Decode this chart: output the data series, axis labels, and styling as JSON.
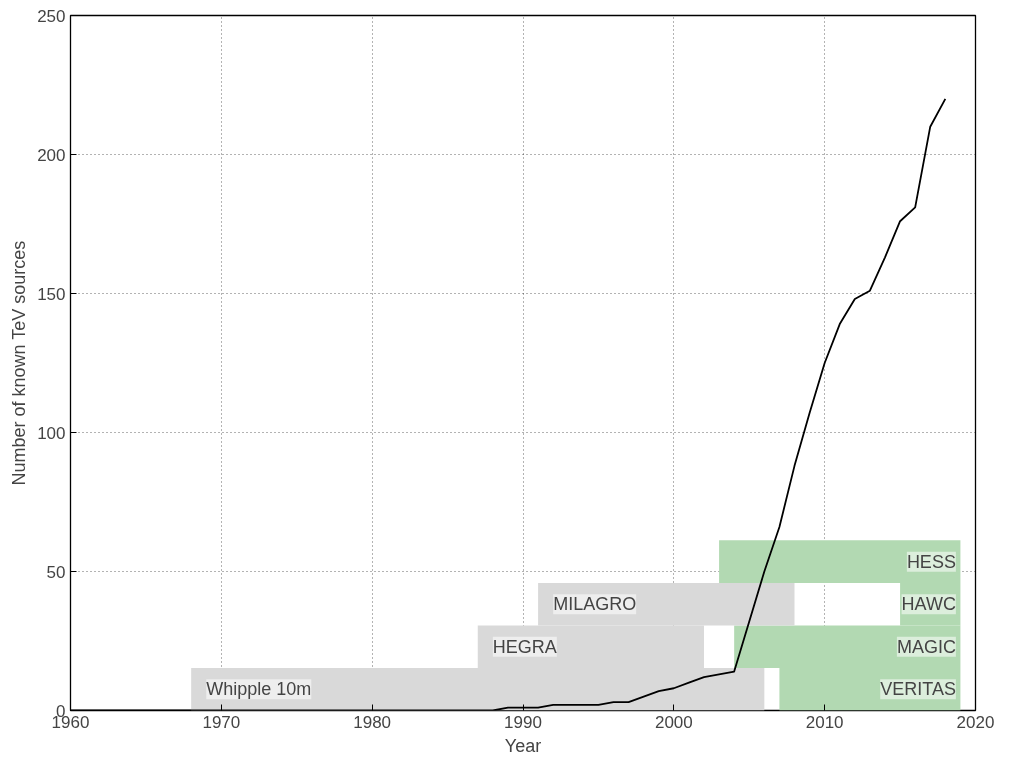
{
  "chart_data": {
    "type": "line",
    "xlabel": "Year",
    "ylabel": "Number of known TeV sources",
    "x": [
      1960,
      1988,
      1989,
      1991,
      1992,
      1995,
      1996,
      1997,
      1999,
      2000,
      2001,
      2002,
      2003,
      2004,
      2005,
      2006,
      2007,
      2008,
      2009,
      2010,
      2011,
      2012,
      2013,
      2014,
      2015,
      2016,
      2017,
      2018
    ],
    "series": [
      {
        "color": "#000000",
        "values": [
          0,
          0,
          1,
          1,
          2,
          2,
          3,
          3,
          7,
          8,
          10,
          12,
          13,
          14,
          32,
          50,
          66,
          88,
          107,
          125,
          139,
          148,
          151,
          163,
          176,
          181,
          210,
          220
        ]
      }
    ],
    "xlim": [
      1960,
      2020
    ],
    "xticks": [
      1960,
      1970,
      1980,
      1990,
      2000,
      2010,
      2020
    ],
    "ylim": [
      0,
      250
    ],
    "yticks": [
      0,
      50,
      100,
      150,
      200,
      250
    ],
    "grid": true,
    "line_style": "solid",
    "marker": "none",
    "bands": [
      {
        "axis": "x",
        "from": 1968,
        "to": 2006,
        "label": "Whipple 10m",
        "color": "#d9d9d9"
      },
      {
        "axis": "x",
        "from": 2007,
        "to": 2019,
        "label": "VERITAS",
        "color": "#b2d9b2"
      },
      {
        "axis": "x",
        "from": 1987,
        "to": 2002,
        "label": "HEGRA",
        "color": "#d9d9d9"
      },
      {
        "axis": "x",
        "from": 2004,
        "to": 2019,
        "label": "MAGIC",
        "color": "#b2d9b2"
      },
      {
        "axis": "x",
        "from": 1991,
        "to": 2008,
        "label": "MILAGRO",
        "color": "#d9d9d9"
      },
      {
        "axis": "x",
        "from": 2015,
        "to": 2019,
        "label": "HAWC",
        "color": "#b2d9b2"
      },
      {
        "axis": "x",
        "from": 2003,
        "to": 2019,
        "label": "HESS",
        "color": "#b2d9b2"
      }
    ]
  }
}
